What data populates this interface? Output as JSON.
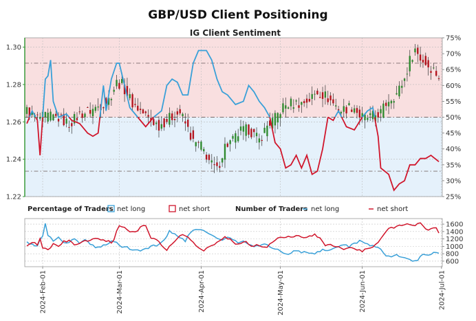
{
  "page": {
    "title": "GBP/USD Client Positioning",
    "subtitle": "IG Client Sentiment"
  },
  "legend": {
    "percentage_label": "Percentage of Traders",
    "pct_long_label": "net long",
    "pct_short_label": "net short",
    "number_label": "Number of Traders",
    "num_long_label": "net long",
    "num_short_label": "net short"
  },
  "colors": {
    "long": "#39a0d8",
    "short": "#d0152b",
    "short_zone": "#f9dfe0",
    "long_zone": "#e5f1fb",
    "candle_up": "#2f8a2f",
    "candle_down": "#b3141e",
    "axis_accent": "#3a9a3a"
  },
  "chart_data": [
    {
      "type": "candlestick_with_line",
      "title": "IG Client Sentiment",
      "price_axis": {
        "side": "left",
        "range": [
          1.22,
          1.305
        ],
        "ticks": [
          "1.22",
          "1.24",
          "1.26",
          "1.28",
          "1.30"
        ]
      },
      "sentiment_axis": {
        "side": "right",
        "range": [
          25,
          75
        ],
        "ticks": [
          "25%",
          "30%",
          "35%",
          "40%",
          "45%",
          "50%",
          "55%",
          "60%",
          "65%",
          "70%",
          "75%"
        ],
        "reference_lines": [
          33,
          50,
          67
        ]
      },
      "price_anchors": [
        [
          0,
          1.266
        ],
        [
          4,
          1.262
        ],
        [
          8,
          1.263
        ],
        [
          12,
          1.262
        ],
        [
          16,
          1.259
        ],
        [
          20,
          1.264
        ],
        [
          24,
          1.266
        ],
        [
          28,
          1.269
        ],
        [
          31,
          1.272
        ],
        [
          34,
          1.281
        ],
        [
          36,
          1.28
        ],
        [
          40,
          1.27
        ],
        [
          43,
          1.266
        ],
        [
          46,
          1.262
        ],
        [
          50,
          1.258
        ],
        [
          54,
          1.262
        ],
        [
          58,
          1.265
        ],
        [
          61,
          1.256
        ],
        [
          63,
          1.249
        ],
        [
          66,
          1.247
        ],
        [
          70,
          1.237
        ],
        [
          72,
          1.234
        ],
        [
          75,
          1.247
        ],
        [
          78,
          1.25
        ],
        [
          81,
          1.255
        ],
        [
          84,
          1.256
        ],
        [
          86,
          1.253
        ],
        [
          88,
          1.25
        ],
        [
          91,
          1.258
        ],
        [
          94,
          1.262
        ],
        [
          97,
          1.268
        ],
        [
          100,
          1.27
        ],
        [
          104,
          1.27
        ],
        [
          107,
          1.272
        ],
        [
          110,
          1.276
        ],
        [
          113,
          1.274
        ],
        [
          116,
          1.27
        ],
        [
          119,
          1.266
        ],
        [
          122,
          1.268
        ],
        [
          124,
          1.268
        ],
        [
          126,
          1.263
        ],
        [
          128,
          1.262
        ],
        [
          131,
          1.263
        ],
        [
          134,
          1.265
        ],
        [
          137,
          1.272
        ],
        [
          140,
          1.275
        ],
        [
          143,
          1.283
        ],
        [
          145,
          1.293
        ],
        [
          147,
          1.299
        ],
        [
          149,
          1.294
        ],
        [
          152,
          1.29
        ],
        [
          154,
          1.288
        ],
        [
          156,
          1.284
        ]
      ],
      "net_long_pct_anchors": [
        [
          0,
          48
        ],
        [
          2,
          52
        ],
        [
          4,
          49
        ],
        [
          5,
          38
        ],
        [
          7,
          62
        ],
        [
          8,
          63
        ],
        [
          9,
          68
        ],
        [
          10,
          55
        ],
        [
          12,
          50
        ],
        [
          15,
          51
        ],
        [
          17,
          49
        ],
        [
          20,
          48
        ],
        [
          23,
          45
        ],
        [
          25,
          44
        ],
        [
          27,
          45
        ],
        [
          29,
          60
        ],
        [
          30,
          52
        ],
        [
          32,
          62
        ],
        [
          34,
          67
        ],
        [
          35,
          67
        ],
        [
          37,
          60
        ],
        [
          39,
          53
        ],
        [
          42,
          50
        ],
        [
          45,
          47
        ],
        [
          48,
          50
        ],
        [
          51,
          52
        ],
        [
          53,
          60
        ],
        [
          55,
          62
        ],
        [
          57,
          61
        ],
        [
          59,
          57
        ],
        [
          61,
          57
        ],
        [
          63,
          67
        ],
        [
          65,
          71
        ],
        [
          68,
          71
        ],
        [
          70,
          68
        ],
        [
          72,
          62
        ],
        [
          74,
          58
        ],
        [
          76,
          57
        ],
        [
          79,
          54
        ],
        [
          82,
          55
        ],
        [
          84,
          60
        ],
        [
          86,
          58
        ],
        [
          88,
          55
        ],
        [
          90,
          53
        ],
        [
          92,
          50
        ],
        [
          94,
          42
        ],
        [
          96,
          40
        ],
        [
          98,
          34
        ],
        [
          100,
          35
        ],
        [
          102,
          38
        ],
        [
          104,
          34
        ],
        [
          106,
          38
        ],
        [
          108,
          32
        ],
        [
          110,
          33
        ],
        [
          112,
          40
        ],
        [
          114,
          50
        ],
        [
          116,
          49
        ],
        [
          118,
          52
        ],
        [
          121,
          47
        ],
        [
          124,
          46
        ],
        [
          127,
          50
        ],
        [
          129,
          52
        ],
        [
          131,
          53
        ],
        [
          133,
          44
        ],
        [
          134,
          34
        ],
        [
          137,
          32
        ],
        [
          139,
          27
        ],
        [
          141,
          29
        ],
        [
          143,
          30
        ],
        [
          145,
          35
        ],
        [
          147,
          35
        ],
        [
          149,
          37
        ],
        [
          151,
          37
        ],
        [
          153,
          38
        ],
        [
          156,
          36
        ]
      ],
      "x_range": [
        0,
        156
      ]
    },
    {
      "type": "line",
      "title": "Number of Traders",
      "axis": {
        "side": "right",
        "range": [
          450,
          1750
        ],
        "ticks": [
          "600",
          "800",
          "1000",
          "1200",
          "1400",
          "1600"
        ]
      },
      "x_labels": [
        "2024-Feb-01",
        "2024-Mar-01",
        "2024-Apr-01",
        "2024-May-01",
        "2024-Jun-01",
        "2024-Jul-01"
      ],
      "x_label_positions": [
        6,
        35,
        66,
        96,
        127,
        157
      ],
      "series": [
        {
          "name": "net long",
          "anchors": [
            [
              0,
              1100
            ],
            [
              2,
              1040
            ],
            [
              4,
              1020
            ],
            [
              6,
              1300
            ],
            [
              7,
              1620
            ],
            [
              8,
              1300
            ],
            [
              10,
              1150
            ],
            [
              12,
              1240
            ],
            [
              14,
              1120
            ],
            [
              16,
              1090
            ],
            [
              18,
              1200
            ],
            [
              20,
              1080
            ],
            [
              22,
              1200
            ],
            [
              24,
              1060
            ],
            [
              26,
              960
            ],
            [
              28,
              1000
            ],
            [
              30,
              1040
            ],
            [
              32,
              1120
            ],
            [
              34,
              1100
            ],
            [
              36,
              1000
            ],
            [
              38,
              990
            ],
            [
              40,
              900
            ],
            [
              42,
              880
            ],
            [
              45,
              940
            ],
            [
              47,
              1000
            ],
            [
              50,
              1030
            ],
            [
              52,
              1180
            ],
            [
              54,
              1400
            ],
            [
              56,
              1350
            ],
            [
              58,
              1250
            ],
            [
              60,
              1140
            ],
            [
              62,
              1380
            ],
            [
              64,
              1440
            ],
            [
              66,
              1460
            ],
            [
              68,
              1400
            ],
            [
              70,
              1310
            ],
            [
              72,
              1200
            ],
            [
              74,
              1160
            ],
            [
              76,
              1250
            ],
            [
              78,
              1180
            ],
            [
              80,
              1100
            ],
            [
              82,
              1120
            ],
            [
              84,
              1060
            ],
            [
              86,
              1000
            ],
            [
              88,
              1020
            ],
            [
              90,
              1090
            ],
            [
              92,
              960
            ],
            [
              94,
              950
            ],
            [
              96,
              880
            ],
            [
              98,
              780
            ],
            [
              100,
              820
            ],
            [
              102,
              890
            ],
            [
              104,
              840
            ],
            [
              106,
              860
            ],
            [
              108,
              800
            ],
            [
              110,
              830
            ],
            [
              112,
              900
            ],
            [
              114,
              860
            ],
            [
              116,
              950
            ],
            [
              118,
              1000
            ],
            [
              120,
              1060
            ],
            [
              122,
              1000
            ],
            [
              124,
              1060
            ],
            [
              126,
              1140
            ],
            [
              128,
              1100
            ],
            [
              130,
              1040
            ],
            [
              132,
              980
            ],
            [
              134,
              940
            ],
            [
              136,
              760
            ],
            [
              138,
              720
            ],
            [
              140,
              760
            ],
            [
              142,
              700
            ],
            [
              144,
              660
            ],
            [
              146,
              610
            ],
            [
              148,
              620
            ],
            [
              150,
              800
            ],
            [
              152,
              780
            ],
            [
              154,
              830
            ],
            [
              156,
              800
            ]
          ]
        },
        {
          "name": "net short",
          "anchors": [
            [
              0,
              980
            ],
            [
              2,
              1100
            ],
            [
              4,
              1050
            ],
            [
              5,
              1200
            ],
            [
              6,
              980
            ],
            [
              8,
              920
            ],
            [
              10,
              1050
            ],
            [
              12,
              1000
            ],
            [
              14,
              1120
            ],
            [
              16,
              1150
            ],
            [
              18,
              1040
            ],
            [
              20,
              1080
            ],
            [
              22,
              1140
            ],
            [
              24,
              1180
            ],
            [
              26,
              1240
            ],
            [
              28,
              1190
            ],
            [
              30,
              1160
            ],
            [
              32,
              1100
            ],
            [
              33,
              1200
            ],
            [
              35,
              1580
            ],
            [
              37,
              1500
            ],
            [
              39,
              1400
            ],
            [
              41,
              1380
            ],
            [
              43,
              1500
            ],
            [
              45,
              1580
            ],
            [
              47,
              1220
            ],
            [
              49,
              1160
            ],
            [
              51,
              1050
            ],
            [
              53,
              900
            ],
            [
              55,
              1080
            ],
            [
              57,
              1240
            ],
            [
              59,
              1300
            ],
            [
              61,
              1260
            ],
            [
              63,
              1100
            ],
            [
              65,
              960
            ],
            [
              67,
              900
            ],
            [
              69,
              990
            ],
            [
              71,
              1050
            ],
            [
              73,
              1150
            ],
            [
              75,
              1240
            ],
            [
              77,
              1180
            ],
            [
              79,
              1070
            ],
            [
              81,
              1080
            ],
            [
              83,
              1120
            ],
            [
              85,
              1000
            ],
            [
              87,
              1050
            ],
            [
              89,
              1010
            ],
            [
              91,
              980
            ],
            [
              93,
              1120
            ],
            [
              95,
              1250
            ],
            [
              97,
              1220
            ],
            [
              99,
              1300
            ],
            [
              101,
              1250
            ],
            [
              103,
              1290
            ],
            [
              105,
              1240
            ],
            [
              107,
              1280
            ],
            [
              109,
              1320
            ],
            [
              111,
              1200
            ],
            [
              113,
              1040
            ],
            [
              115,
              1060
            ],
            [
              117,
              1000
            ],
            [
              119,
              960
            ],
            [
              121,
              920
            ],
            [
              123,
              980
            ],
            [
              125,
              900
            ],
            [
              127,
              880
            ],
            [
              129,
              960
            ],
            [
              131,
              1000
            ],
            [
              133,
              1100
            ],
            [
              135,
              1300
            ],
            [
              137,
              1480
            ],
            [
              139,
              1520
            ],
            [
              141,
              1560
            ],
            [
              143,
              1600
            ],
            [
              145,
              1560
            ],
            [
              147,
              1560
            ],
            [
              149,
              1650
            ],
            [
              151,
              1480
            ],
            [
              153,
              1450
            ],
            [
              155,
              1500
            ],
            [
              156,
              1370
            ]
          ]
        }
      ]
    }
  ]
}
